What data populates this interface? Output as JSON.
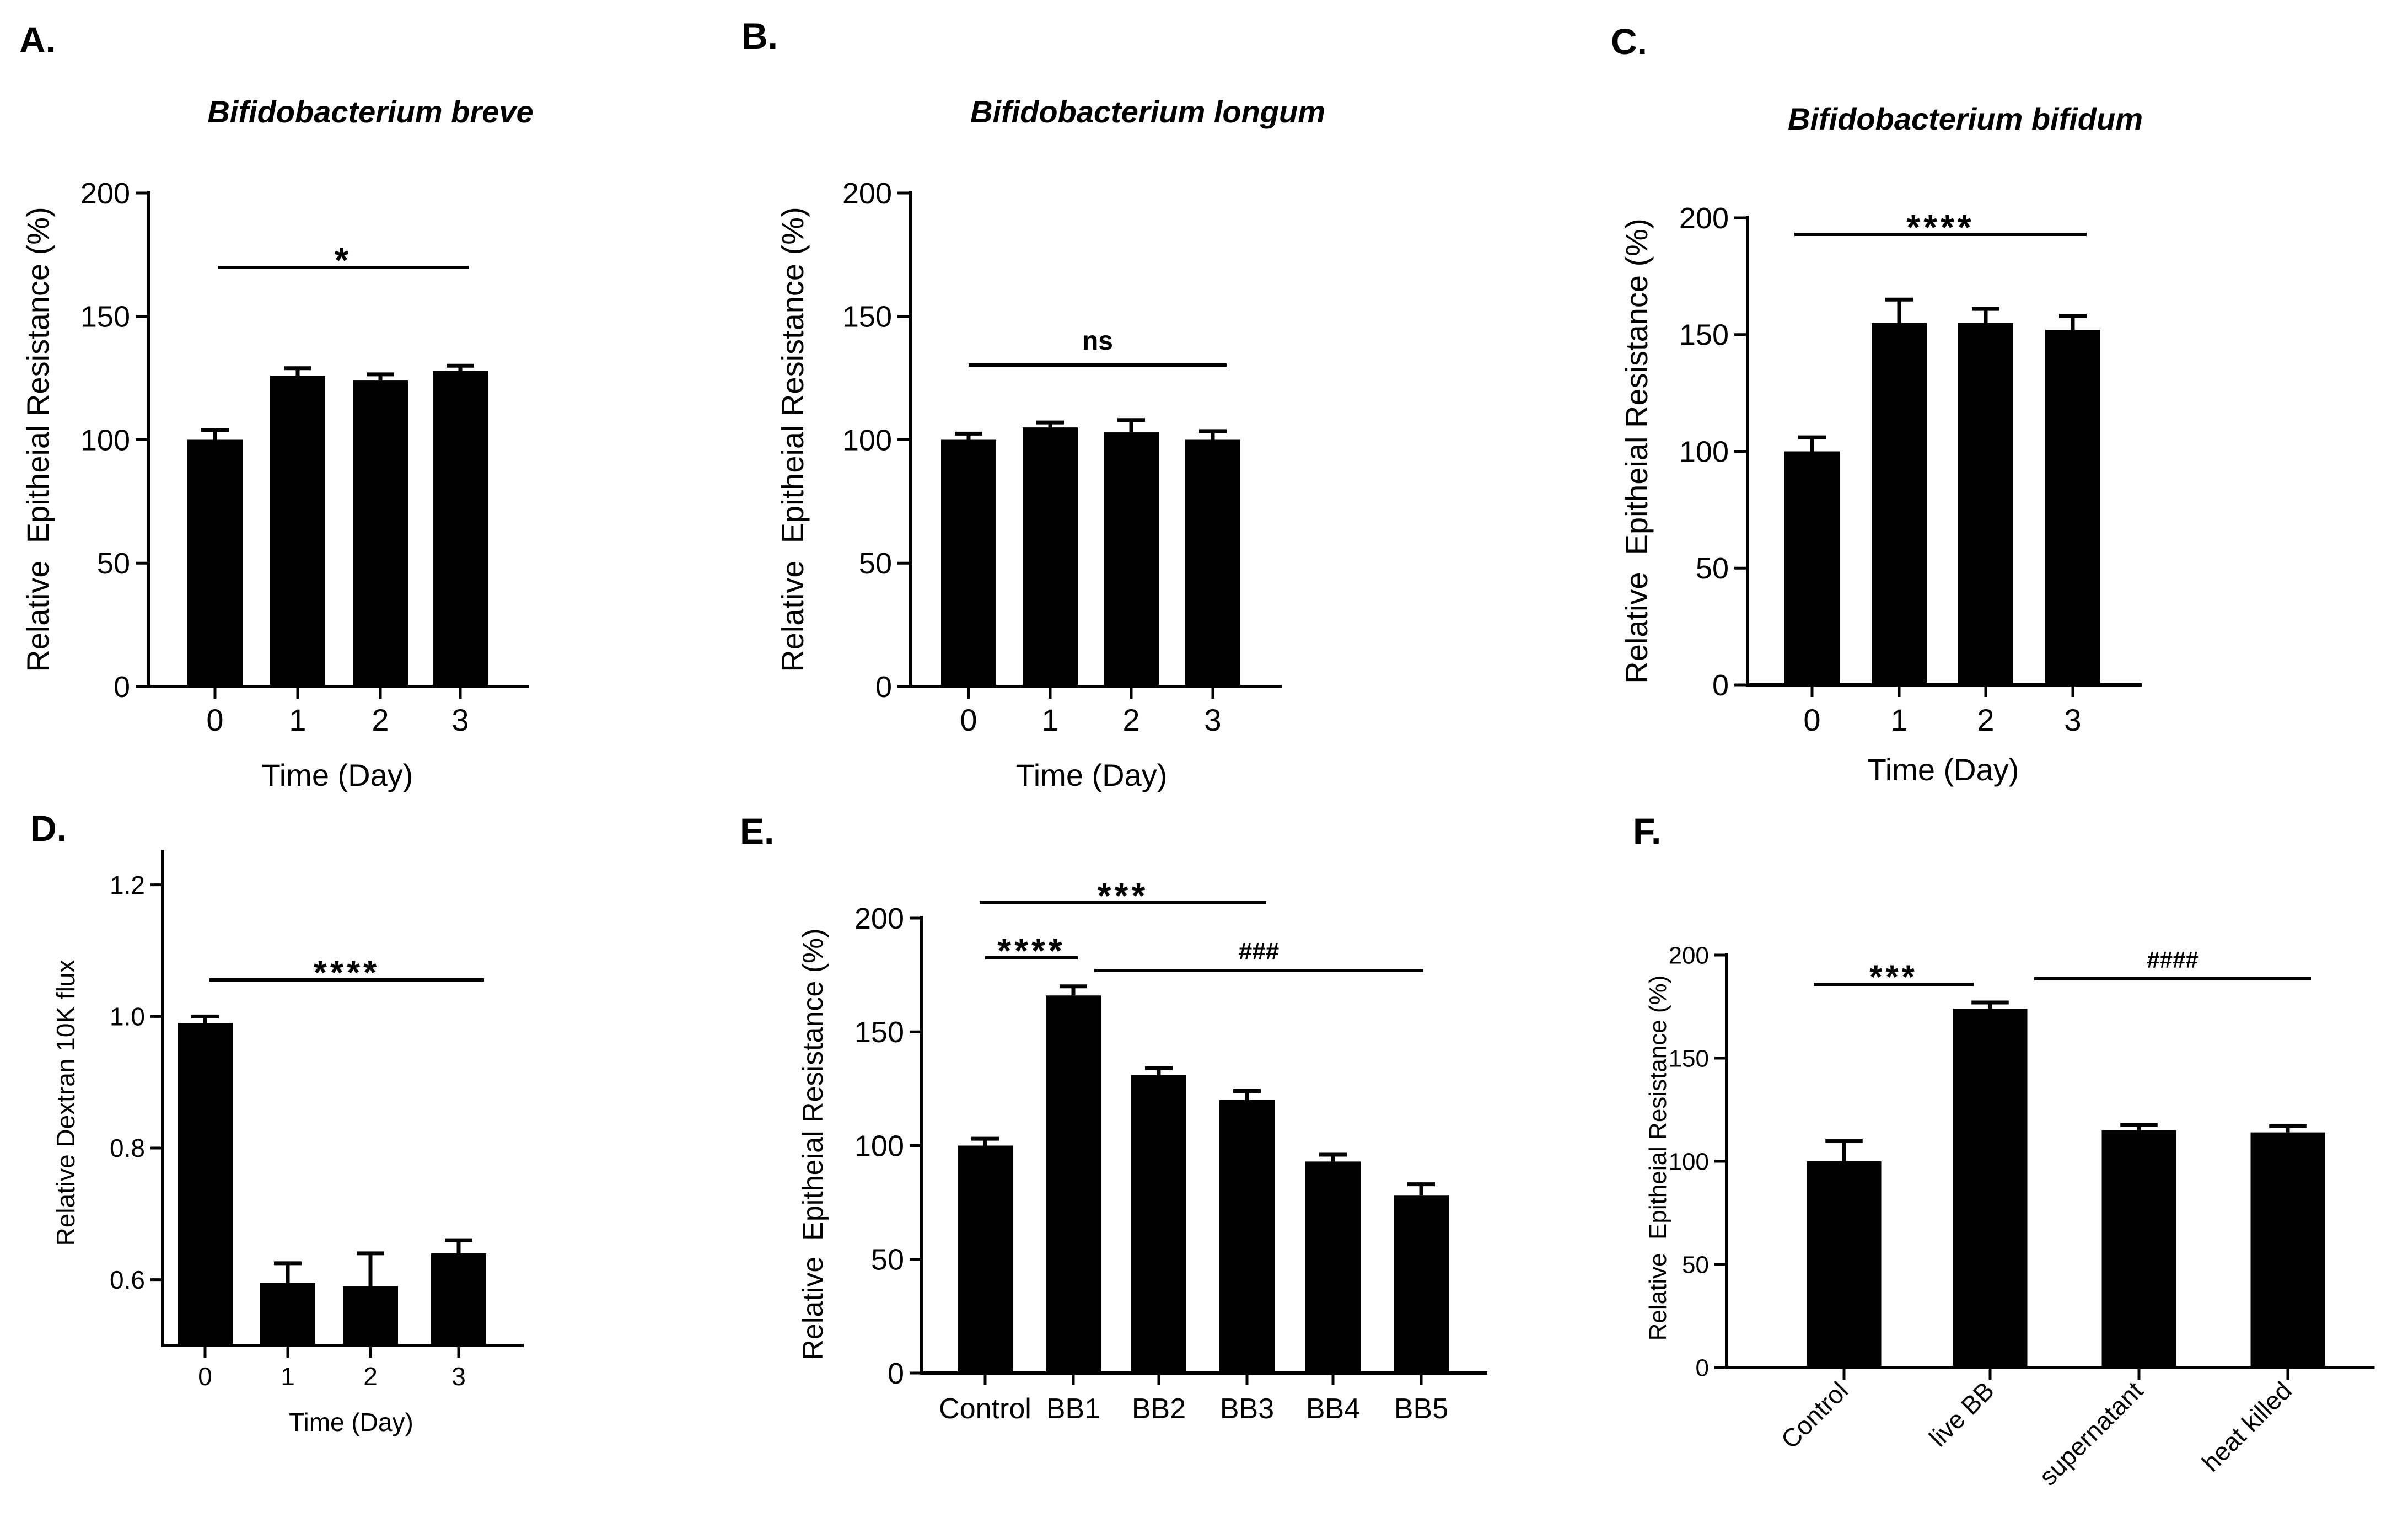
{
  "figure": {
    "colors": {
      "bar": "#000000",
      "axis": "#000000",
      "text": "#000000",
      "background": "#ffffff"
    }
  },
  "chart_data": [
    {
      "id": "A",
      "type": "bar",
      "panel_label": "A.",
      "title": "Bifidobacterium breve",
      "xlabel": "Time (Day)",
      "ylabel": "Relative  Epitheial Resistance (%)",
      "categories": [
        "0",
        "1",
        "2",
        "3"
      ],
      "values": [
        100,
        126,
        124,
        128
      ],
      "errors": [
        4,
        3,
        2.5,
        2
      ],
      "ylim": [
        0,
        200
      ],
      "yticks": [
        0,
        50,
        100,
        150,
        200
      ],
      "ytick_labels": [
        "0",
        "50",
        "100",
        "150",
        "200"
      ],
      "annotations": [
        {
          "text": "*",
          "from": 0,
          "to": 3
        }
      ]
    },
    {
      "id": "B",
      "type": "bar",
      "panel_label": "B.",
      "title": "Bifidobacterium longum",
      "xlabel": "Time (Day)",
      "ylabel": "Relative  Epitheial Resistance (%)",
      "categories": [
        "0",
        "1",
        "2",
        "3"
      ],
      "values": [
        100,
        105,
        103,
        100
      ],
      "errors": [
        2.5,
        2,
        5,
        3.5
      ],
      "ylim": [
        0,
        200
      ],
      "yticks": [
        0,
        50,
        100,
        150,
        200
      ],
      "ytick_labels": [
        "0",
        "50",
        "100",
        "150",
        "200"
      ],
      "annotations": [
        {
          "text": "ns",
          "from": 0,
          "to": 3
        }
      ]
    },
    {
      "id": "C",
      "type": "bar",
      "panel_label": "C.",
      "title": "Bifidobacterium bifidum",
      "xlabel": "Time (Day)",
      "ylabel": "Relative  Epitheial Resistance (%)",
      "categories": [
        "0",
        "1",
        "2",
        "3"
      ],
      "values": [
        100,
        155,
        155,
        152
      ],
      "errors": [
        6,
        10,
        6,
        6
      ],
      "ylim": [
        0,
        200
      ],
      "yticks": [
        0,
        50,
        100,
        150,
        200
      ],
      "ytick_labels": [
        "0",
        "50",
        "100",
        "150",
        "200"
      ],
      "annotations": [
        {
          "text": "****",
          "from": 0,
          "to": 3
        }
      ]
    },
    {
      "id": "D",
      "type": "bar",
      "panel_label": "D.",
      "title": "",
      "xlabel": "Time (Day)",
      "ylabel": "Relative Dextran 10K flux",
      "categories": [
        "0",
        "1",
        "2",
        "3"
      ],
      "values": [
        0.99,
        0.595,
        0.59,
        0.64
      ],
      "errors": [
        0.01,
        0.03,
        0.05,
        0.02
      ],
      "ylim": [
        0.5,
        1.25
      ],
      "yticks": [
        0.6,
        0.8,
        1.0,
        1.2
      ],
      "ytick_labels": [
        "0.6",
        "0.8",
        "1.0",
        "1.2"
      ],
      "annotations": [
        {
          "text": "****",
          "from": 0,
          "to": 3
        }
      ]
    },
    {
      "id": "E",
      "type": "bar",
      "panel_label": "E.",
      "title": "",
      "xlabel": "",
      "ylabel": "Relative  Epitheial Resistance (%)",
      "categories": [
        "Control",
        "BB1",
        "BB2",
        "BB3",
        "BB4",
        "BB5"
      ],
      "values": [
        100,
        166,
        131,
        120,
        93,
        78
      ],
      "errors": [
        3,
        4,
        3,
        4,
        3,
        5
      ],
      "ylim": [
        0,
        200
      ],
      "yticks": [
        0,
        50,
        100,
        150,
        200
      ],
      "ytick_labels": [
        "0",
        "50",
        "100",
        "150",
        "200"
      ],
      "annotations": [
        {
          "text": "***",
          "from": 0,
          "to": 3
        },
        {
          "text": "****",
          "from": 0,
          "to": 1
        },
        {
          "text": "###",
          "from": 1,
          "to": 5
        }
      ]
    },
    {
      "id": "F",
      "type": "bar",
      "panel_label": "F.",
      "title": "",
      "xlabel": "",
      "ylabel": "Relative  Epitheial Resistance (%)",
      "categories": [
        "Control",
        "live BB",
        "supernatant",
        "heat killed"
      ],
      "values": [
        100,
        174,
        115,
        114
      ],
      "errors": [
        10,
        3,
        2.5,
        3
      ],
      "ylim": [
        0,
        200
      ],
      "yticks": [
        0,
        50,
        100,
        150,
        200
      ],
      "ytick_labels": [
        "0",
        "50",
        "100",
        "150",
        "200"
      ],
      "annotations": [
        {
          "text": "***",
          "from": 0,
          "to": 1
        },
        {
          "text": "####",
          "from": 1,
          "to": 3
        }
      ]
    }
  ]
}
